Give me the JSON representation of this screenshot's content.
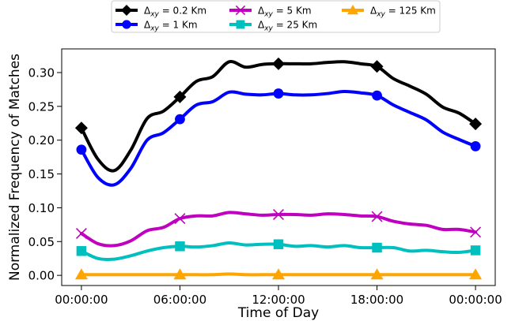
{
  "chart_data": {
    "type": "line",
    "xlabel": "Time of Day",
    "ylabel": "Normalized Frequency of Matches",
    "x_ticks": [
      {
        "label": "00:00:00",
        "hour": 0
      },
      {
        "label": "06:00:00",
        "hour": 6
      },
      {
        "label": "12:00:00",
        "hour": 12
      },
      {
        "label": "18:00:00",
        "hour": 18
      },
      {
        "label": "00:00:00",
        "hour": 24
      }
    ],
    "xlim": [
      -1.2,
      25.2
    ],
    "ylim": [
      -0.015,
      0.335
    ],
    "y_ticks": [
      {
        "label": "0.00",
        "value": 0.0
      },
      {
        "label": "0.05",
        "value": 0.05
      },
      {
        "label": "0.10",
        "value": 0.1
      },
      {
        "label": "0.15",
        "value": 0.15
      },
      {
        "label": "0.20",
        "value": 0.2
      },
      {
        "label": "0.25",
        "value": 0.25
      },
      {
        "label": "0.30",
        "value": 0.3
      }
    ],
    "grid": false,
    "legend_position": "top-center",
    "series": [
      {
        "name": "Δxy = 0.2 Km",
        "legend_main": "Δ",
        "legend_sub": "xy",
        "legend_rest": " = 0.2 Km",
        "color": "#000000",
        "marker": "diamond",
        "x": [
          0,
          1,
          2,
          3,
          4,
          5,
          6,
          7,
          8,
          9,
          10,
          11,
          12,
          13,
          14,
          15,
          16,
          17,
          18,
          19,
          20,
          21,
          22,
          23,
          24
        ],
        "values": [
          0.218,
          0.172,
          0.155,
          0.185,
          0.232,
          0.243,
          0.264,
          0.287,
          0.294,
          0.316,
          0.308,
          0.312,
          0.313,
          0.313,
          0.313,
          0.315,
          0.316,
          0.313,
          0.309,
          0.291,
          0.28,
          0.268,
          0.249,
          0.24,
          0.224
        ],
        "marker_x": [
          0,
          6,
          12,
          18,
          24
        ]
      },
      {
        "name": "Δxy = 1 Km",
        "legend_main": "Δ",
        "legend_sub": "xy",
        "legend_rest": " = 1 Km",
        "color": "#0000ff",
        "marker": "circle",
        "x": [
          0,
          1,
          2,
          3,
          4,
          5,
          6,
          7,
          8,
          9,
          10,
          11,
          12,
          13,
          14,
          15,
          16,
          17,
          18,
          19,
          20,
          21,
          22,
          23,
          24
        ],
        "values": [
          0.186,
          0.145,
          0.134,
          0.158,
          0.2,
          0.211,
          0.231,
          0.252,
          0.257,
          0.271,
          0.268,
          0.267,
          0.269,
          0.267,
          0.267,
          0.269,
          0.272,
          0.27,
          0.266,
          0.252,
          0.241,
          0.23,
          0.212,
          0.201,
          0.191
        ],
        "marker_x": [
          0,
          6,
          12,
          18,
          24
        ]
      },
      {
        "name": "Δxy = 5 Km",
        "legend_main": "Δ",
        "legend_sub": "xy",
        "legend_rest": " = 5 Km",
        "color": "#bf00bf",
        "marker": "x",
        "x": [
          0,
          1,
          2,
          3,
          4,
          5,
          6,
          7,
          8,
          9,
          10,
          11,
          12,
          13,
          14,
          15,
          16,
          17,
          18,
          19,
          20,
          21,
          22,
          23,
          24
        ],
        "values": [
          0.062,
          0.047,
          0.044,
          0.051,
          0.066,
          0.071,
          0.084,
          0.088,
          0.088,
          0.093,
          0.091,
          0.089,
          0.09,
          0.09,
          0.089,
          0.091,
          0.09,
          0.088,
          0.087,
          0.08,
          0.076,
          0.074,
          0.068,
          0.068,
          0.064
        ],
        "marker_x": [
          0,
          6,
          12,
          18,
          24
        ]
      },
      {
        "name": "Δxy = 25 Km",
        "legend_main": "Δ",
        "legend_sub": "xy",
        "legend_rest": " = 25 Km",
        "color": "#00bfbf",
        "marker": "square",
        "x": [
          0,
          1,
          2,
          3,
          4,
          5,
          6,
          7,
          8,
          9,
          10,
          11,
          12,
          13,
          14,
          15,
          16,
          17,
          18,
          19,
          20,
          21,
          22,
          23,
          24
        ],
        "values": [
          0.036,
          0.025,
          0.024,
          0.029,
          0.036,
          0.041,
          0.043,
          0.042,
          0.044,
          0.048,
          0.045,
          0.046,
          0.046,
          0.043,
          0.044,
          0.042,
          0.044,
          0.041,
          0.041,
          0.041,
          0.036,
          0.037,
          0.035,
          0.034,
          0.037
        ],
        "marker_x": [
          0,
          6,
          12,
          18,
          24
        ]
      },
      {
        "name": "Δxy = 125 Km",
        "legend_main": "Δ",
        "legend_sub": "xy",
        "legend_rest": " = 125 Km",
        "color": "#ffa500",
        "marker": "triangle",
        "x": [
          0,
          1,
          2,
          3,
          4,
          5,
          6,
          7,
          8,
          9,
          10,
          11,
          12,
          13,
          14,
          15,
          16,
          17,
          18,
          19,
          20,
          21,
          22,
          23,
          24
        ],
        "values": [
          0.001,
          0.001,
          0.001,
          0.001,
          0.001,
          0.001,
          0.001,
          0.001,
          0.001,
          0.002,
          0.001,
          0.001,
          0.001,
          0.001,
          0.001,
          0.001,
          0.001,
          0.001,
          0.001,
          0.001,
          0.001,
          0.001,
          0.001,
          0.001,
          0.001
        ],
        "marker_x": [
          0,
          6,
          12,
          18,
          24
        ]
      }
    ]
  }
}
